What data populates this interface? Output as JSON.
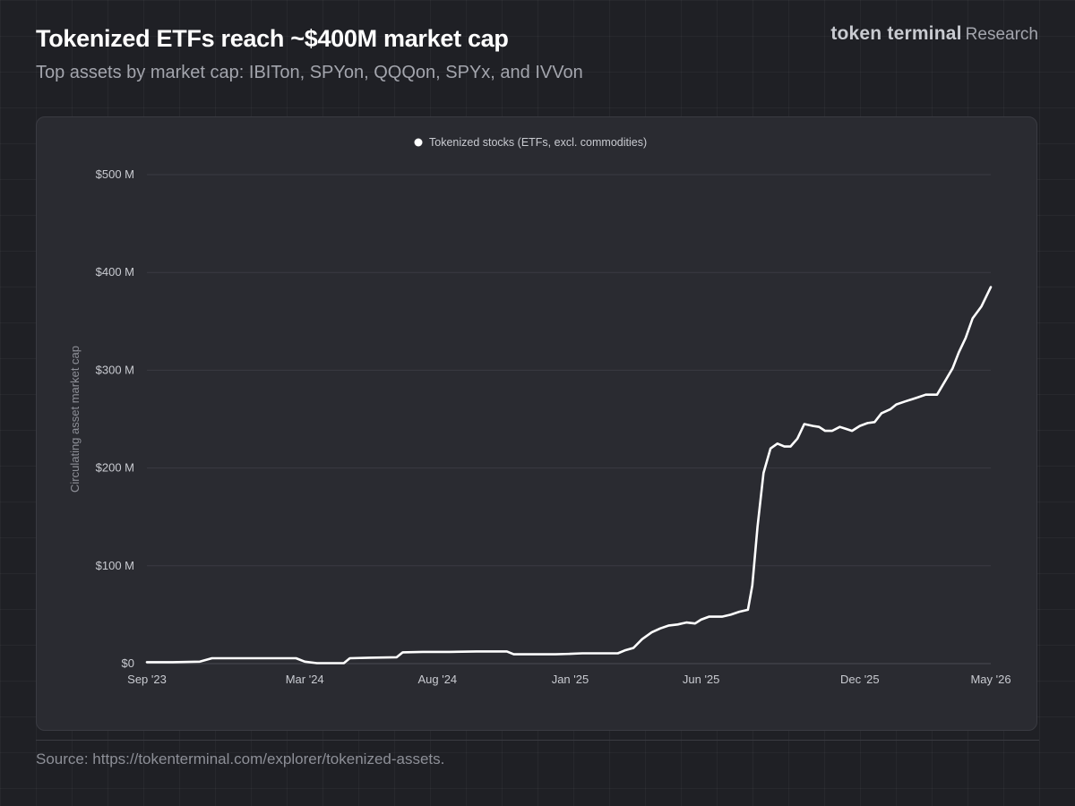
{
  "header": {
    "title": "Tokenized ETFs reach ~$400M market cap",
    "subtitle": "Top assets by market cap: IBITon, SPYon, QQQon, SPYx, and IVVon"
  },
  "brand": {
    "name": "token terminal",
    "suffix": "Research"
  },
  "footer": {
    "source": "Source: https://tokenterminal.com/explorer/tokenized-assets."
  },
  "chart_data": {
    "type": "line",
    "title": "",
    "xlabel": "",
    "ylabel": "Circulating asset market cap",
    "ylim": [
      0,
      500
    ],
    "y_ticks": [
      0,
      100,
      200,
      300,
      400,
      500
    ],
    "y_tick_labels": [
      "$0",
      "$100 M",
      "$200 M",
      "$300 M",
      "$400 M",
      "$500 M"
    ],
    "x_ticks": [
      "2023-09-01",
      "2024-03-01",
      "2024-08-01",
      "2025-01-01",
      "2025-06-01",
      "2025-12-01",
      "2026-05-01"
    ],
    "x_tick_labels": [
      "Sep '23",
      "Mar '24",
      "Aug '24",
      "Jan '25",
      "Jun '25",
      "Dec '25",
      "May '26"
    ],
    "xlim": [
      "2023-09-01",
      "2026-05-01"
    ],
    "grid": true,
    "legend_position": "top-center",
    "series": [
      {
        "name": "Tokenized stocks (ETFs, excl. commodities)",
        "color": "#ffffff",
        "points": [
          [
            "2023-09-01",
            1.5
          ],
          [
            "2023-10-01",
            1.5
          ],
          [
            "2023-11-01",
            2
          ],
          [
            "2023-11-15",
            5.5
          ],
          [
            "2023-12-15",
            5.5
          ],
          [
            "2024-01-15",
            5.5
          ],
          [
            "2024-02-20",
            5.5
          ],
          [
            "2024-03-01",
            2
          ],
          [
            "2024-03-15",
            0.5
          ],
          [
            "2024-04-15",
            0.5
          ],
          [
            "2024-04-22",
            5.5
          ],
          [
            "2024-05-15",
            6
          ],
          [
            "2024-06-15",
            6.5
          ],
          [
            "2024-06-22",
            11.5
          ],
          [
            "2024-07-15",
            12
          ],
          [
            "2024-08-15",
            12
          ],
          [
            "2024-09-15",
            12.5
          ],
          [
            "2024-10-20",
            12.5
          ],
          [
            "2024-10-28",
            9.5
          ],
          [
            "2024-11-15",
            9.5
          ],
          [
            "2024-12-15",
            9.5
          ],
          [
            "2025-01-01",
            10
          ],
          [
            "2025-01-15",
            10.5
          ],
          [
            "2025-02-05",
            10.5
          ],
          [
            "2025-02-25",
            10.5
          ],
          [
            "2025-03-05",
            13.5
          ],
          [
            "2025-03-15",
            16
          ],
          [
            "2025-03-25",
            25
          ],
          [
            "2025-04-05",
            32
          ],
          [
            "2025-04-15",
            36
          ],
          [
            "2025-04-25",
            39
          ],
          [
            "2025-05-05",
            40
          ],
          [
            "2025-05-15",
            42
          ],
          [
            "2025-05-25",
            41
          ],
          [
            "2025-06-01",
            45
          ],
          [
            "2025-06-10",
            48
          ],
          [
            "2025-06-25",
            48
          ],
          [
            "2025-07-05",
            50
          ],
          [
            "2025-07-15",
            53
          ],
          [
            "2025-07-25",
            55
          ],
          [
            "2025-07-30",
            80
          ],
          [
            "2025-08-05",
            140
          ],
          [
            "2025-08-12",
            195
          ],
          [
            "2025-08-20",
            220
          ],
          [
            "2025-08-28",
            225
          ],
          [
            "2025-09-05",
            222
          ],
          [
            "2025-09-12",
            222
          ],
          [
            "2025-09-20",
            230
          ],
          [
            "2025-09-28",
            245
          ],
          [
            "2025-10-08",
            243
          ],
          [
            "2025-10-15",
            242
          ],
          [
            "2025-10-22",
            238
          ],
          [
            "2025-10-30",
            238
          ],
          [
            "2025-11-08",
            242
          ],
          [
            "2025-11-15",
            240
          ],
          [
            "2025-11-22",
            238
          ],
          [
            "2025-12-01",
            243
          ],
          [
            "2025-12-10",
            246
          ],
          [
            "2025-12-18",
            247
          ],
          [
            "2025-12-26",
            256
          ],
          [
            "2026-01-05",
            260
          ],
          [
            "2026-01-12",
            265
          ],
          [
            "2026-01-22",
            268
          ],
          [
            "2026-02-05",
            272
          ],
          [
            "2026-02-15",
            275
          ],
          [
            "2026-02-28",
            275
          ],
          [
            "2026-03-10",
            290
          ],
          [
            "2026-03-18",
            302
          ],
          [
            "2026-03-25",
            318
          ],
          [
            "2026-04-02",
            333
          ],
          [
            "2026-04-10",
            353
          ],
          [
            "2026-04-20",
            365
          ],
          [
            "2026-05-01",
            385
          ]
        ]
      }
    ]
  }
}
